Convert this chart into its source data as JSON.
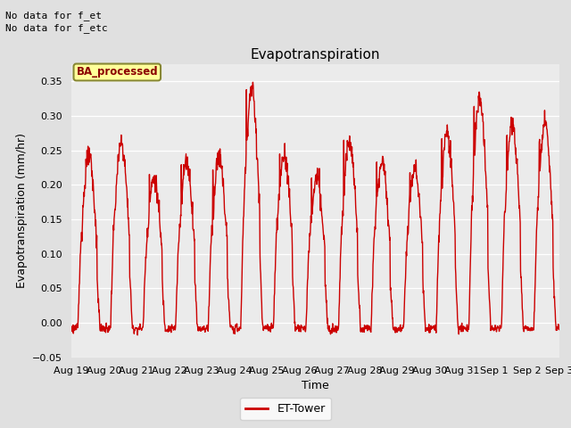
{
  "title": "Evapotranspiration",
  "xlabel": "Time",
  "ylabel": "Evapotranspiration (mm/hr)",
  "ylim": [
    -0.05,
    0.375
  ],
  "yticks": [
    -0.05,
    0.0,
    0.05,
    0.1,
    0.15,
    0.2,
    0.25,
    0.3,
    0.35
  ],
  "line_color": "#cc0000",
  "line_width": 1.0,
  "bg_color": "#e0e0e0",
  "plot_bg_color": "#ebebeb",
  "legend_label": "ET-Tower",
  "annotation_text1": "No data for f_et",
  "annotation_text2": "No data for f_etc",
  "annotation_color": "black",
  "ba_box_text": "BA_processed",
  "ba_box_color": "#ffff99",
  "ba_box_border": "#888833",
  "ba_text_color": "#8B0000",
  "x_tick_labels": [
    "Aug 19",
    "Aug 20",
    "Aug 21",
    "Aug 22",
    "Aug 23",
    "Aug 24",
    "Aug 25",
    "Aug 26",
    "Aug 27",
    "Aug 28",
    "Aug 29",
    "Aug 30",
    "Aug 31",
    "Sep 1",
    "Sep 2",
    "Sep 3"
  ],
  "num_days": 15,
  "points_per_day": 96
}
